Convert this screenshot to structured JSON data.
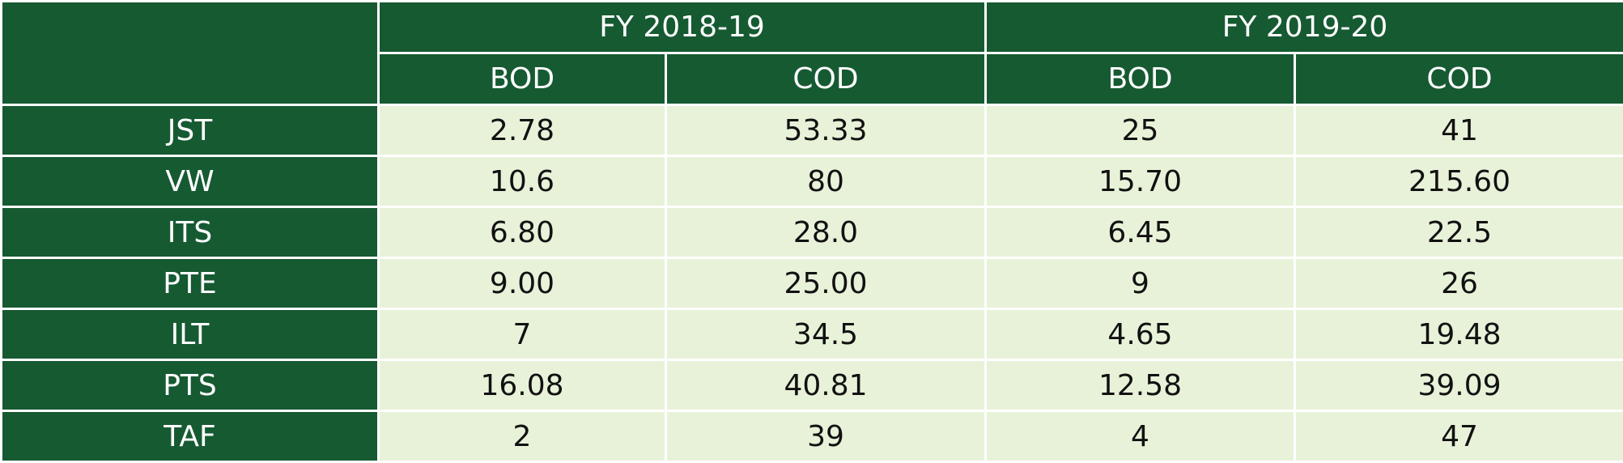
{
  "table": {
    "groups": [
      "FY 2018-19",
      "FY 2019-20"
    ],
    "subheaders": [
      "BOD",
      "COD",
      "BOD",
      "COD"
    ],
    "rows": [
      {
        "label": "JST",
        "values": [
          "2.78",
          "53.33",
          "25",
          "41"
        ]
      },
      {
        "label": "VW",
        "values": [
          "10.6",
          "80",
          "15.70",
          "215.60"
        ]
      },
      {
        "label": "ITS",
        "values": [
          "6.80",
          "28.0",
          "6.45",
          "22.5"
        ]
      },
      {
        "label": "PTE",
        "values": [
          "9.00",
          "25.00",
          "9",
          "26"
        ]
      },
      {
        "label": "ILT",
        "values": [
          "7",
          "34.5",
          "4.65",
          "19.48"
        ]
      },
      {
        "label": "PTS",
        "values": [
          "16.08",
          "40.81",
          "12.58",
          "39.09"
        ]
      },
      {
        "label": "TAF",
        "values": [
          "2",
          "39",
          "4",
          "47"
        ]
      }
    ]
  },
  "colors": {
    "header_bg": "#165a32",
    "cell_bg": "#e8f2d9",
    "header_text": "#ffffff",
    "cell_text": "#111111"
  }
}
